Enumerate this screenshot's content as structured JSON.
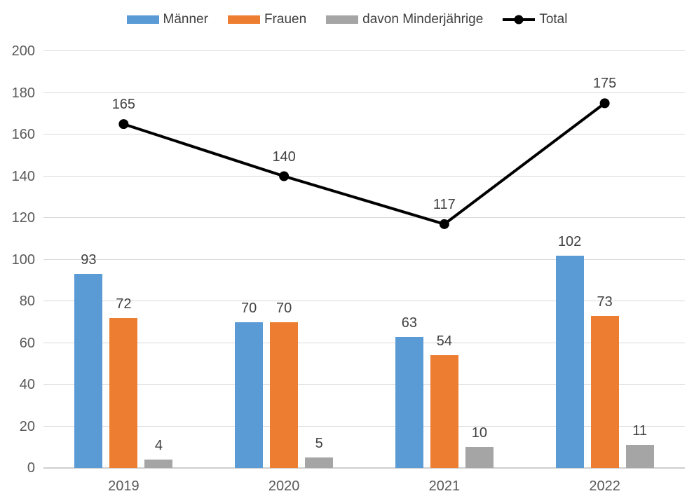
{
  "chart_data": {
    "type": "bar",
    "subtype": "grouped-bars-with-line-overlay",
    "title": "",
    "xlabel": "",
    "ylabel": "",
    "categories": [
      "2019",
      "2020",
      "2021",
      "2022"
    ],
    "series": [
      {
        "name": "Männer",
        "type": "bar",
        "color": "#5B9BD5",
        "values": [
          93,
          70,
          63,
          102
        ]
      },
      {
        "name": "Frauen",
        "type": "bar",
        "color": "#ED7D31",
        "values": [
          72,
          70,
          54,
          73
        ]
      },
      {
        "name": "davon Minderjährige",
        "type": "bar",
        "color": "#A5A5A5",
        "values": [
          4,
          5,
          10,
          11
        ]
      },
      {
        "name": "Total",
        "type": "line",
        "color": "#000000",
        "values": [
          165,
          140,
          117,
          175
        ]
      }
    ],
    "ylim": [
      0,
      200
    ],
    "ytick_step": 20,
    "ytick_labels": [
      "0",
      "20",
      "40",
      "60",
      "80",
      "100",
      "120",
      "140",
      "160",
      "180",
      "200"
    ],
    "grid": true,
    "grid_color": "#D9D9D9",
    "axis_line_color": "#CFCFCF",
    "tick_label_color": "#595959",
    "data_label_color": "#404040",
    "data_labels": true,
    "legend_position": "top",
    "legend_items": [
      "Männer",
      "Frauen",
      "davon Minderjährige",
      "Total"
    ]
  }
}
